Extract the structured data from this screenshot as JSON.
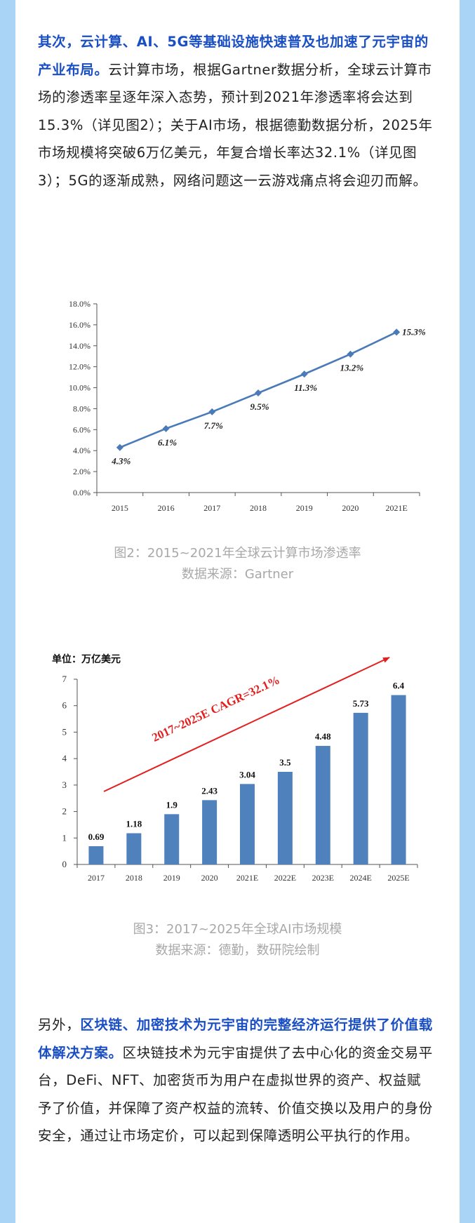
{
  "para1": {
    "highlight": "其次，云计算、AI、5G等基础设施快速普及也加速了元宇宙的产业布局。",
    "text": "云计算市场，根据Gartner数据分析，全球云计算市场的渗透率呈逐年深入态势，预计到2021年渗透率将会达到15.3%（详见图2）；关于AI市场，根据德勤数据分析，2025年市场规模将突破6万亿美元，年复合增长率达32.1%（详见图3）；5G的逐渐成熟，网络问题这一云游戏痛点将会迎刃而解。"
  },
  "figure2": {
    "caption1": "图2：2015~2021年全球云计算市场渗透率",
    "caption2": "数据来源：Gartner"
  },
  "figure3": {
    "caption1": "图3：2017~2025年全球AI市场规模",
    "caption2": "数据来源：德勤，数研院绘制"
  },
  "para2": {
    "lead": "另外，",
    "highlight": "区块链、加密技术为元宇宙的完整经济运行提供了价值载体解决方案。",
    "text": "区块链技术为元宇宙提供了去中心化的资金交易平台，DeFi、NFT、加密货币为用户在虚拟世界的资产、权益赋予了价值，并保障了资产权益的流转、价值交换以及用户的身份安全，通过让市场定价，可以起到保障透明公平执行的作用。"
  },
  "chart_data": [
    {
      "type": "line",
      "categories": [
        "2015",
        "2016",
        "2017",
        "2018",
        "2019",
        "2020",
        "2021E"
      ],
      "values": [
        4.3,
        6.1,
        7.7,
        9.5,
        11.3,
        13.2,
        15.3
      ],
      "labels": [
        "4.3%",
        "6.1%",
        "7.7%",
        "9.5%",
        "11.3%",
        "13.2%",
        "15.3%"
      ],
      "yticks": [
        "0.0%",
        "2.0%",
        "4.0%",
        "6.0%",
        "8.0%",
        "10.0%",
        "12.0%",
        "14.0%",
        "16.0%",
        "18.0%"
      ],
      "ylim": [
        0,
        18
      ],
      "color": "#4a7ab8"
    },
    {
      "type": "bar",
      "unit": "单位：万亿美元",
      "categories": [
        "2017",
        "2018",
        "2019",
        "2020",
        "2021E",
        "2022E",
        "2023E",
        "2024E",
        "2025E"
      ],
      "values": [
        0.69,
        1.18,
        1.9,
        2.43,
        3.04,
        3.5,
        4.48,
        5.73,
        6.4
      ],
      "labels": [
        "0.69",
        "1.18",
        "1.9",
        "2.43",
        "3.04",
        "3.5",
        "4.48",
        "5.73",
        "6.4"
      ],
      "yticks": [
        "0",
        "1",
        "2",
        "3",
        "4",
        "5",
        "6",
        "7"
      ],
      "ylim": [
        0,
        7
      ],
      "annotation": "2017~2025E CAGR=32.1%",
      "color": "#4f81bd",
      "annotation_color": "#e41e1e"
    }
  ]
}
